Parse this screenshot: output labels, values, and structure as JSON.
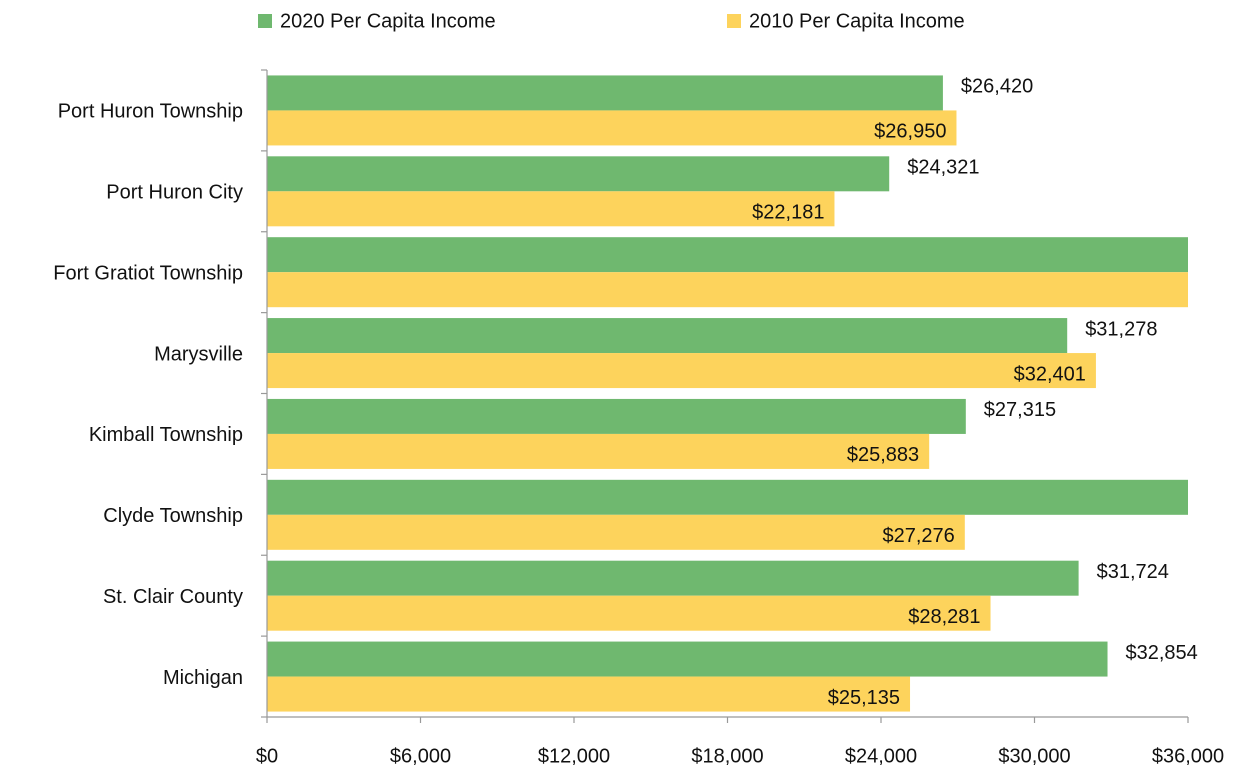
{
  "chart_data": {
    "type": "bar",
    "orientation": "horizontal",
    "categories": [
      "Port Huron Township",
      "Port Huron City",
      "Fort Gratiot Township",
      "Marysville",
      "Kimball Township",
      "Clyde Township",
      "St. Clair County",
      "Michigan"
    ],
    "series": [
      {
        "name": "2020 Per Capita Income",
        "color": "#6fb86f",
        "values": [
          26420,
          24321,
          36000,
          31278,
          27315,
          36000,
          31724,
          32854
        ],
        "value_labels": [
          "$26,420",
          "$24,321",
          null,
          "$31,278",
          "$27,315",
          null,
          "$31,724",
          "$32,854"
        ]
      },
      {
        "name": "2010 Per Capita Income",
        "color": "#fdd35c",
        "values": [
          26950,
          22181,
          36000,
          32401,
          25883,
          27276,
          28281,
          25135
        ],
        "value_labels": [
          "$26,950",
          "$22,181",
          null,
          "$32,401",
          "$25,883",
          "$27,276",
          "$28,281",
          "$25,135"
        ]
      }
    ],
    "xlim": [
      0,
      36000
    ],
    "xticks": [
      {
        "value": 0,
        "label": "$0"
      },
      {
        "value": 6000,
        "label": "$6,000"
      },
      {
        "value": 12000,
        "label": "$12,000"
      },
      {
        "value": 18000,
        "label": "$18,000"
      },
      {
        "value": 24000,
        "label": "$24,000"
      },
      {
        "value": 30000,
        "label": "$30,000"
      },
      {
        "value": 36000,
        "label": "$36,000"
      }
    ],
    "legend": "top",
    "grid": false
  }
}
